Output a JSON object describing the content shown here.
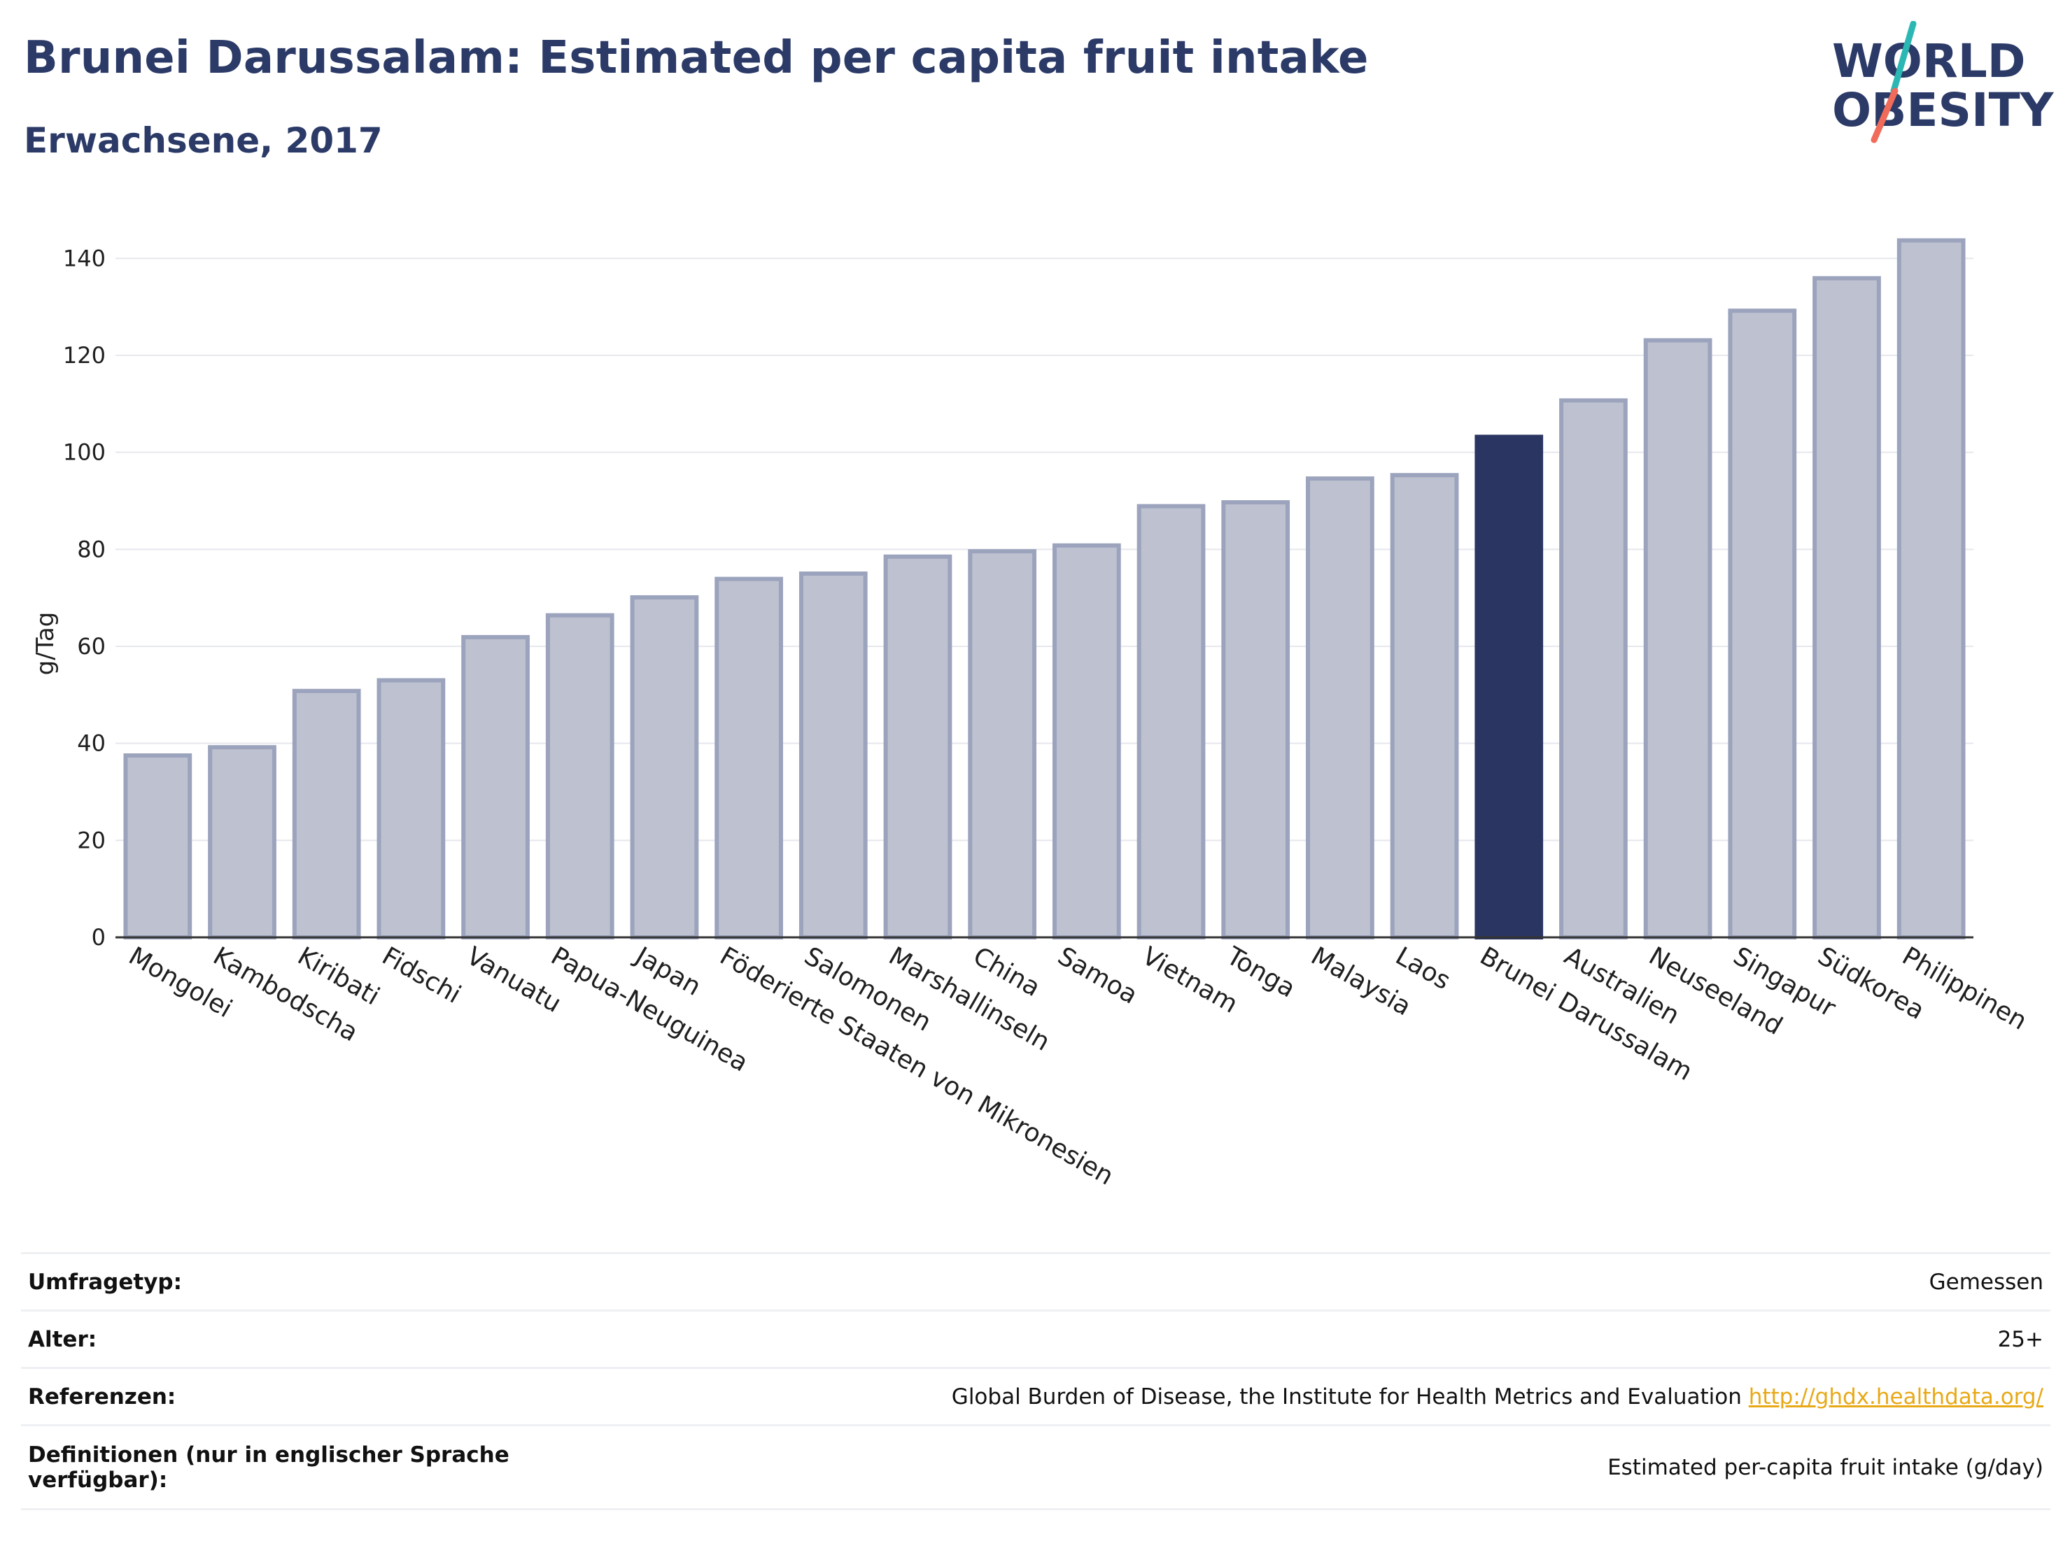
{
  "title": "Brunei Darussalam: Estimated per capita fruit intake",
  "subtitle": "Erwachsene, 2017",
  "logo": {
    "line1": "WORLD",
    "line2": "OBESITY"
  },
  "colors": {
    "bar": "#bec2d0",
    "bar_stroke": "#9ba3bd",
    "highlight": "#2b3562",
    "title": "#2b3a67",
    "link": "#e8a917"
  },
  "chart_data": {
    "type": "bar",
    "ylabel": "g/Tag",
    "xlabel": "",
    "ylim": [
      0,
      150
    ],
    "yticks": [
      0,
      20,
      40,
      60,
      80,
      100,
      120,
      140
    ],
    "grid": true,
    "highlight": "Brunei Darussalam",
    "categories": [
      "Mongolei",
      "Kambodscha",
      "Kiribati",
      "Fidschi",
      "Vanuatu",
      "Papua-Neuguinea",
      "Japan",
      "Föderierte Staaten von Mikronesien",
      "Salomonen",
      "Marshallinseln",
      "China",
      "Samoa",
      "Vietnam",
      "Tonga",
      "Malaysia",
      "Laos",
      "Brunei Darussalam",
      "Australien",
      "Neuseeland",
      "Singapur",
      "Südkorea",
      "Philippinen"
    ],
    "values": [
      37.5,
      39.2,
      50.8,
      53,
      61.9,
      66.4,
      70.1,
      73.9,
      75,
      78.5,
      79.6,
      80.8,
      88.9,
      89.7,
      94.6,
      95.3,
      103.2,
      110.7,
      123.1,
      129.2,
      135.9,
      143.7
    ]
  },
  "info": [
    {
      "key": "Umfragetyp:",
      "value": "Gemessen"
    },
    {
      "key": "Alter:",
      "value": "25+"
    },
    {
      "key": "Referenzen:",
      "value": "Global Burden of Disease, the Institute for Health Metrics and Evaluation",
      "link": "http://ghdx.healthdata.org/"
    },
    {
      "key": "Definitionen (nur in englischer Sprache verfügbar):",
      "value": "Estimated per-capita fruit intake (g/day)"
    }
  ]
}
